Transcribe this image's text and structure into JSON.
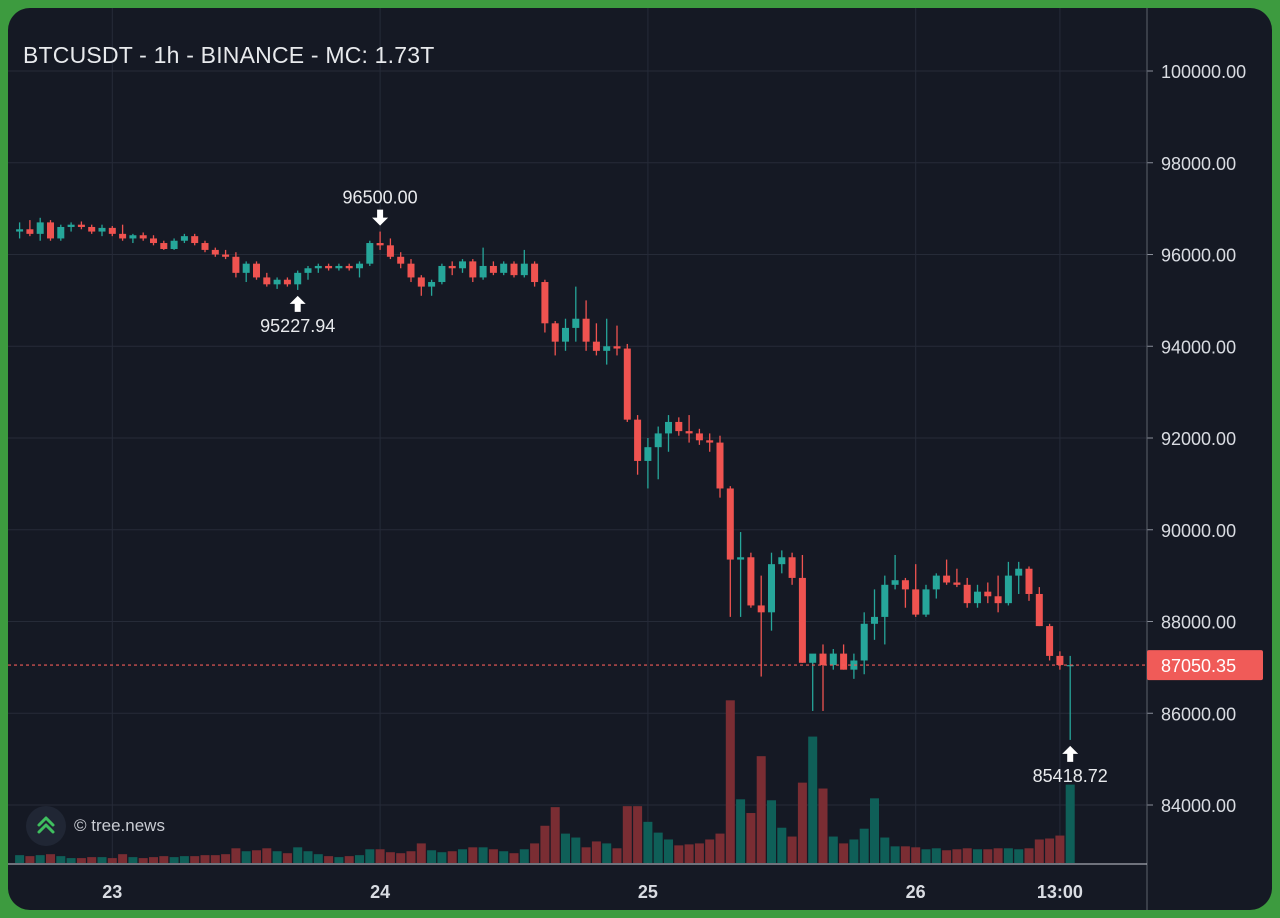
{
  "header": {
    "title": "BTCUSDT - 1h - BINANCE - MC: 1.73T"
  },
  "watermark": {
    "text": "© tree.news",
    "icon": "tree-news-logo-icon"
  },
  "colors": {
    "background": "#151924",
    "frame": "#3d9b3f",
    "up": "#26a69a",
    "down": "#ef5350",
    "up_volume": "#0f5f58",
    "down_volume": "#7a2d33",
    "grid": "#262b38",
    "last_price_badge": "#f05b58"
  },
  "chart_data": {
    "type": "candlestick",
    "symbol": "BTCUSDT",
    "interval": "1h",
    "exchange": "BINANCE",
    "y_axis": {
      "ylim": [
        82800,
        101000
      ],
      "tick_labels": [
        "100000.00",
        "98000.00",
        "96000.00",
        "94000.00",
        "92000.00",
        "90000.00",
        "88000.00",
        "86000.00",
        "84000.00"
      ],
      "tick_values": [
        100000,
        98000,
        96000,
        94000,
        92000,
        90000,
        88000,
        86000,
        84000
      ]
    },
    "x_axis": {
      "tick_labels": [
        "23",
        "24",
        "25",
        "26",
        "13:00"
      ],
      "tick_candle_index": [
        9,
        35,
        61,
        87,
        101
      ]
    },
    "grid": true,
    "last_price": {
      "value": 87050.35,
      "label": "87050.35"
    },
    "annotations": [
      {
        "label": "96500.00",
        "candle_index": 35,
        "price": 96500.0,
        "type": "high"
      },
      {
        "label": "95227.94",
        "candle_index": 27,
        "price": 95227.94,
        "type": "low"
      },
      {
        "label": "85418.72",
        "candle_index": 102,
        "price": 85418.72,
        "type": "low"
      }
    ],
    "candles": [
      [
        96500,
        96700,
        96350,
        96550,
        8
      ],
      [
        96550,
        96750,
        96400,
        96450,
        7
      ],
      [
        96450,
        96800,
        96300,
        96700,
        8
      ],
      [
        96700,
        96750,
        96300,
        96350,
        9
      ],
      [
        96350,
        96650,
        96300,
        96600,
        7
      ],
      [
        96600,
        96700,
        96500,
        96650,
        5
      ],
      [
        96650,
        96720,
        96550,
        96600,
        5
      ],
      [
        96600,
        96650,
        96450,
        96500,
        6
      ],
      [
        96500,
        96650,
        96400,
        96580,
        6
      ],
      [
        96580,
        96620,
        96400,
        96450,
        5
      ],
      [
        96450,
        96650,
        96300,
        96350,
        9
      ],
      [
        96350,
        96450,
        96250,
        96420,
        6
      ],
      [
        96420,
        96480,
        96300,
        96350,
        5
      ],
      [
        96350,
        96420,
        96200,
        96250,
        6
      ],
      [
        96250,
        96300,
        96100,
        96120,
        7
      ],
      [
        96120,
        96350,
        96100,
        96300,
        6
      ],
      [
        96300,
        96450,
        96250,
        96400,
        7
      ],
      [
        96400,
        96450,
        96200,
        96250,
        7
      ],
      [
        96250,
        96300,
        96050,
        96100,
        8
      ],
      [
        96100,
        96150,
        95950,
        96000,
        8
      ],
      [
        96000,
        96100,
        95900,
        95950,
        9
      ],
      [
        95950,
        96050,
        95500,
        95600,
        15
      ],
      [
        95600,
        95850,
        95400,
        95800,
        12
      ],
      [
        95800,
        95850,
        95450,
        95500,
        13
      ],
      [
        95500,
        95600,
        95300,
        95350,
        15
      ],
      [
        95350,
        95500,
        95250,
        95450,
        12
      ],
      [
        95450,
        95500,
        95300,
        95350,
        10
      ],
      [
        95350,
        95650,
        95227.94,
        95600,
        16
      ],
      [
        95600,
        95750,
        95450,
        95700,
        12
      ],
      [
        95700,
        95800,
        95600,
        95750,
        9
      ],
      [
        95750,
        95800,
        95650,
        95700,
        7
      ],
      [
        95700,
        95800,
        95650,
        95750,
        6
      ],
      [
        95750,
        95800,
        95650,
        95700,
        7
      ],
      [
        95700,
        95850,
        95500,
        95800,
        8
      ],
      [
        95800,
        96300,
        95750,
        96250,
        14
      ],
      [
        96250,
        96500,
        96100,
        96200,
        14
      ],
      [
        96200,
        96350,
        95900,
        95950,
        11
      ],
      [
        95950,
        96050,
        95700,
        95800,
        10
      ],
      [
        95800,
        95900,
        95400,
        95500,
        12
      ],
      [
        95500,
        95550,
        95100,
        95300,
        20
      ],
      [
        95300,
        95450,
        95100,
        95400,
        13
      ],
      [
        95400,
        95800,
        95350,
        95750,
        11
      ],
      [
        95750,
        95850,
        95550,
        95700,
        12
      ],
      [
        95700,
        95900,
        95600,
        95850,
        14
      ],
      [
        95850,
        95900,
        95400,
        95500,
        16
      ],
      [
        95500,
        96150,
        95450,
        95750,
        16
      ],
      [
        95750,
        95850,
        95550,
        95600,
        14
      ],
      [
        95600,
        95850,
        95550,
        95800,
        12
      ],
      [
        95800,
        95850,
        95500,
        95550,
        10
      ],
      [
        95550,
        96100,
        95500,
        95800,
        14
      ],
      [
        95800,
        95850,
        95300,
        95400,
        20
      ],
      [
        95400,
        95450,
        94300,
        94500,
        38
      ],
      [
        94500,
        94550,
        93800,
        94100,
        57
      ],
      [
        94100,
        94600,
        93900,
        94400,
        30
      ],
      [
        94400,
        95300,
        94100,
        94600,
        26
      ],
      [
        94600,
        95000,
        93900,
        94100,
        16
      ],
      [
        94100,
        94500,
        93800,
        93900,
        22
      ],
      [
        93900,
        94600,
        93600,
        94000,
        20
      ],
      [
        94000,
        94450,
        93800,
        93950,
        15
      ],
      [
        93950,
        94050,
        92350,
        92400,
        58
      ],
      [
        92400,
        92500,
        91200,
        91500,
        58
      ],
      [
        91500,
        92000,
        90900,
        91800,
        42
      ],
      [
        91800,
        92250,
        91100,
        92100,
        31
      ],
      [
        92100,
        92500,
        91700,
        92350,
        24
      ],
      [
        92350,
        92450,
        92050,
        92150,
        18
      ],
      [
        92150,
        92500,
        91900,
        92100,
        19
      ],
      [
        92100,
        92200,
        91850,
        91950,
        20
      ],
      [
        91950,
        92100,
        91700,
        91900,
        24
      ],
      [
        91900,
        92050,
        90700,
        90900,
        30
      ],
      [
        90900,
        90950,
        88100,
        89350,
        166
      ],
      [
        89350,
        89950,
        88100,
        89400,
        65
      ],
      [
        89400,
        89500,
        88300,
        88350,
        51
      ],
      [
        88350,
        89000,
        86800,
        88200,
        109
      ],
      [
        88200,
        89500,
        87800,
        89250,
        64
      ],
      [
        89250,
        89550,
        89050,
        89400,
        36
      ],
      [
        89400,
        89500,
        88800,
        88950,
        27
      ],
      [
        88950,
        89450,
        87100,
        87100,
        82
      ],
      [
        87100,
        87150,
        86050,
        87300,
        129
      ],
      [
        87300,
        87500,
        86050,
        87050,
        76
      ],
      [
        87050,
        87400,
        86950,
        87300,
        27
      ],
      [
        87300,
        87500,
        86950,
        86950,
        20
      ],
      [
        86950,
        87300,
        86750,
        87150,
        24
      ],
      [
        87150,
        88200,
        86850,
        87950,
        35
      ],
      [
        87950,
        88700,
        87600,
        88100,
        66
      ],
      [
        88100,
        89000,
        87500,
        88800,
        26
      ],
      [
        88800,
        89450,
        88700,
        88900,
        17
      ],
      [
        88900,
        88950,
        88300,
        88700,
        17
      ],
      [
        88700,
        89250,
        88100,
        88150,
        16
      ],
      [
        88150,
        88800,
        88100,
        88700,
        14
      ],
      [
        88700,
        89050,
        88500,
        89000,
        15
      ],
      [
        89000,
        89350,
        88800,
        88850,
        13
      ],
      [
        88850,
        89150,
        88750,
        88800,
        14
      ],
      [
        88800,
        88950,
        88300,
        88400,
        15
      ],
      [
        88400,
        88800,
        88300,
        88650,
        14
      ],
      [
        88650,
        88850,
        88400,
        88550,
        14
      ],
      [
        88550,
        89000,
        88200,
        88400,
        15
      ],
      [
        88400,
        89300,
        88350,
        89000,
        15
      ],
      [
        89000,
        89300,
        88600,
        89150,
        14
      ],
      [
        89150,
        89200,
        88450,
        88600,
        15
      ],
      [
        88600,
        88750,
        87900,
        87900,
        24
      ],
      [
        87900,
        87950,
        87150,
        87250,
        25
      ],
      [
        87250,
        87350,
        86950,
        87050,
        28
      ],
      [
        87050,
        87250,
        85418.72,
        87050,
        80
      ]
    ]
  }
}
